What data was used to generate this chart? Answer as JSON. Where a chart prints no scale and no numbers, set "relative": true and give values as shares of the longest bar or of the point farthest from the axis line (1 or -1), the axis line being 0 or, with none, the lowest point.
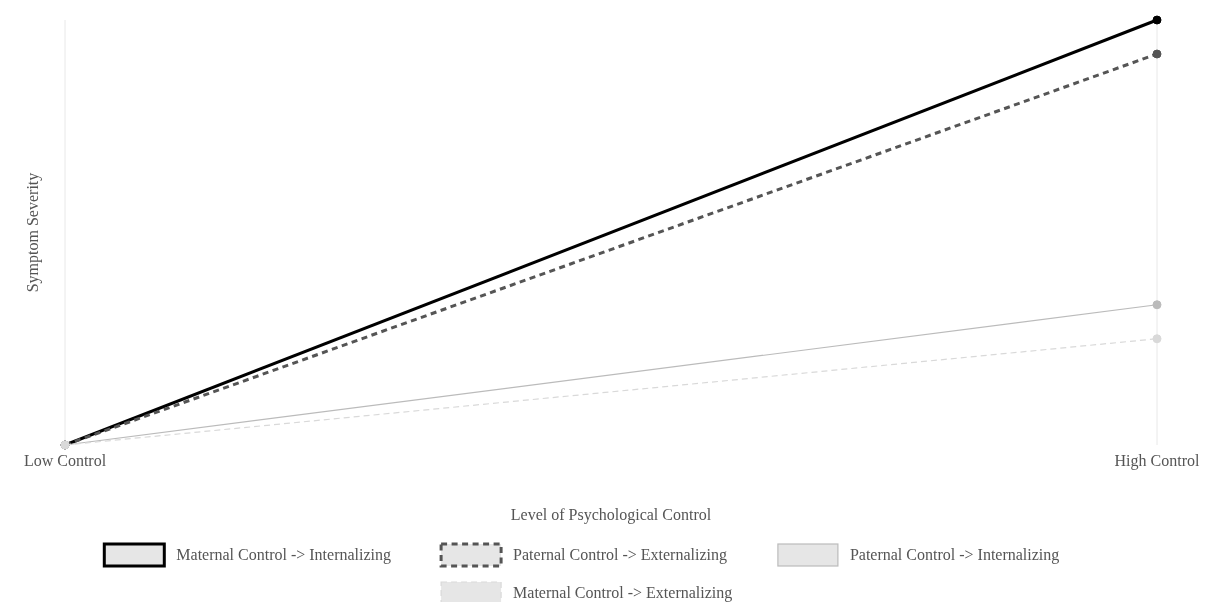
{
  "chart_data": {
    "type": "line",
    "relative": true,
    "xlabel": "Level of Psychological Control",
    "ylabel": "Symptom Severity",
    "categories": [
      "Low Control",
      "High Control"
    ],
    "grid": "x",
    "legend": "bottom",
    "marker": "circle",
    "series": [
      {
        "name": "Maternal Control -> Internalizing",
        "color": "#000000",
        "line_style": "solid",
        "values": [
          0,
          1
        ]
      },
      {
        "name": "Paternal Control -> Externalizing",
        "color": "#555555",
        "line_style": "dashed",
        "values": [
          0,
          0.92
        ]
      },
      {
        "name": "Paternal Control -> Internalizing",
        "color": "#bbbbbb",
        "line_style": "solid",
        "values": [
          0,
          0.33
        ]
      },
      {
        "name": "Maternal Control -> Externalizing",
        "color": "#d9d9d9",
        "line_style": "dashed",
        "values": [
          0,
          0.25
        ]
      }
    ]
  }
}
